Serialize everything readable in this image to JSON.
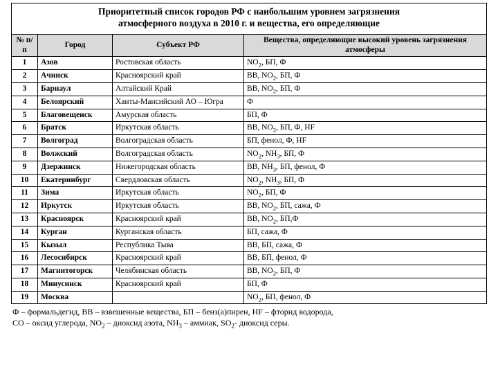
{
  "title_line1": "Приоритетный список городов РФ с наибольшим уровнем загрязнения",
  "title_line2": "атмосферного воздуха в 2010 г. и вещества, его определяющие",
  "columns": {
    "num": "№ п/п",
    "city": "Город",
    "subject": "Субъект РФ",
    "substances": "Вещества, определяющие высокий уровень загрязнения атмосферы"
  },
  "rows": [
    {
      "n": "1",
      "city": "Азов",
      "subj": "Ростовская область",
      "sub": "NO<sub>2</sub>, БП, Ф"
    },
    {
      "n": "2",
      "city": "Ачинск",
      "subj": "Красноярский край",
      "sub": "ВВ, NO<sub>2</sub>, БП, Ф"
    },
    {
      "n": "3",
      "city": "Барнаул",
      "subj": "Алтайский Край",
      "sub": "ВВ, NO<sub>2</sub>, БП, Ф"
    },
    {
      "n": "4",
      "city": "Белоярский",
      "subj": "Ханты-Мансийский АО – Югра",
      "sub": "Ф"
    },
    {
      "n": "5",
      "city": "Благовещенск",
      "subj": "Амурская область",
      "sub": "БП, Ф"
    },
    {
      "n": "6",
      "city": "Братск",
      "subj": "Иркутская область",
      "sub": "ВВ, NO<sub>2</sub>, БП, Ф, HF"
    },
    {
      "n": "7",
      "city": "Волгоград",
      "subj": "Волгоградская область",
      "sub": "БП, фенол, Ф, HF"
    },
    {
      "n": "8",
      "city": "Волжский",
      "subj": "Волгоградская область",
      "sub": "NO<sub>2</sub>, NH<sub>3</sub>, БП, Ф"
    },
    {
      "n": "9",
      "city": "Дзержинск",
      "subj": "Нижегородская область",
      "sub": "ВВ, NH<sub>3</sub>, БП, фенол, Ф"
    },
    {
      "n": "10",
      "city": "Екатеринбург",
      "subj": "Свердловская область",
      "sub": "NO<sub>2</sub>, NH<sub>3</sub>, БП, Ф"
    },
    {
      "n": "11",
      "city": "Зима",
      "subj": "Иркутская область",
      "sub": "NO<sub>2</sub>, БП, Ф"
    },
    {
      "n": "12",
      "city": "Иркутск",
      "subj": "Иркутская область",
      "sub": "ВВ, NO<sub>2</sub>, БП, сажа, Ф"
    },
    {
      "n": "13",
      "city": "Красноярск",
      "subj": "Красноярский край",
      "sub": "ВВ, NO<sub>2</sub>, БП,Ф"
    },
    {
      "n": "14",
      "city": "Курган",
      "subj": "Курганская область",
      "sub": "БП,  сажа, Ф"
    },
    {
      "n": "15",
      "city": "Кызыл",
      "subj": "Республика Тыва",
      "sub": "ВВ, БП, сажа, Ф"
    },
    {
      "n": "16",
      "city": "Лесосибирск",
      "subj": "Красноярский край",
      "sub": "ВВ, БП, фенол, Ф"
    },
    {
      "n": "17",
      "city": "Магнитогорск",
      "subj": "Челябинская область",
      "sub": "ВВ, NO<sub>2</sub>, БП, Ф"
    },
    {
      "n": "18",
      "city": "Минусинск",
      "subj": "Красноярский край",
      "sub": "БП, Ф"
    },
    {
      "n": "19",
      "city": "Москва",
      "subj": "",
      "sub": "NO<sub>2</sub>, БП, фенол, Ф"
    }
  ],
  "legend_line1": "Ф – формальдегид, ВВ – взвешенные вещества, БП – бенз(а)пирен, HF – фторид водорода,",
  "legend_line2_html": "CO – оксид углерода, NO<sub>2</sub> –  диоксид азота, NH<sub>3</sub> – аммиак, SO<sub>2</sub>- диоксид серы."
}
